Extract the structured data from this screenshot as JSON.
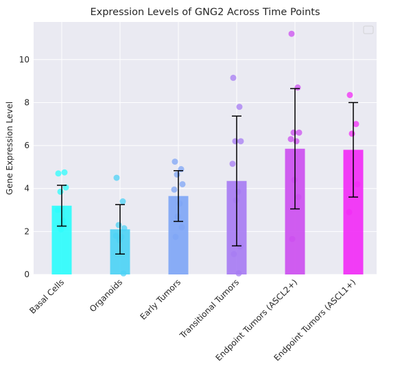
{
  "chart_data": {
    "type": "bar",
    "title": "Expression Levels of GNG2 Across Time Points",
    "xlabel": "",
    "ylabel": "Gene Expression Level",
    "ylim": [
      0,
      11.75
    ],
    "yticks": [
      0,
      2,
      4,
      6,
      8,
      10
    ],
    "grid": true,
    "legend": {
      "placement": "top-right",
      "entries": []
    },
    "categories": [
      "Basal Cells",
      "Organoids",
      "Early Tumors",
      "Transitional Tumors",
      "Endpoint Tumors (ASCL2+)",
      "Endpoint Tumors (ASCL1+)"
    ],
    "values": [
      3.2,
      2.1,
      3.65,
      4.35,
      5.85,
      5.8
    ],
    "error": [
      0.95,
      1.15,
      1.18,
      3.02,
      2.8,
      2.2
    ],
    "colors": [
      "#2efcfc",
      "#4dd2f5",
      "#7fa6f6",
      "#a77cf3",
      "#cc4ff0",
      "#f12cf6"
    ],
    "points": [
      [
        4.7,
        4.75,
        3.85,
        4.05,
        3.0,
        2.5,
        2.1
      ],
      [
        4.5,
        3.4,
        2.3,
        2.15,
        1.8,
        1.75,
        1.6,
        0.05
      ],
      [
        5.25,
        4.9,
        4.65,
        4.2,
        3.95,
        3.3,
        2.7,
        2.2,
        1.75
      ],
      [
        9.15,
        7.8,
        6.2,
        6.2,
        5.15,
        3.85,
        3.45,
        1.3,
        0.95,
        0.05
      ],
      [
        11.2,
        8.7,
        6.6,
        6.6,
        6.3,
        6.2,
        4.4,
        3.6,
        1.65
      ],
      [
        8.35,
        7.0,
        6.55,
        4.2,
        2.9
      ]
    ]
  }
}
